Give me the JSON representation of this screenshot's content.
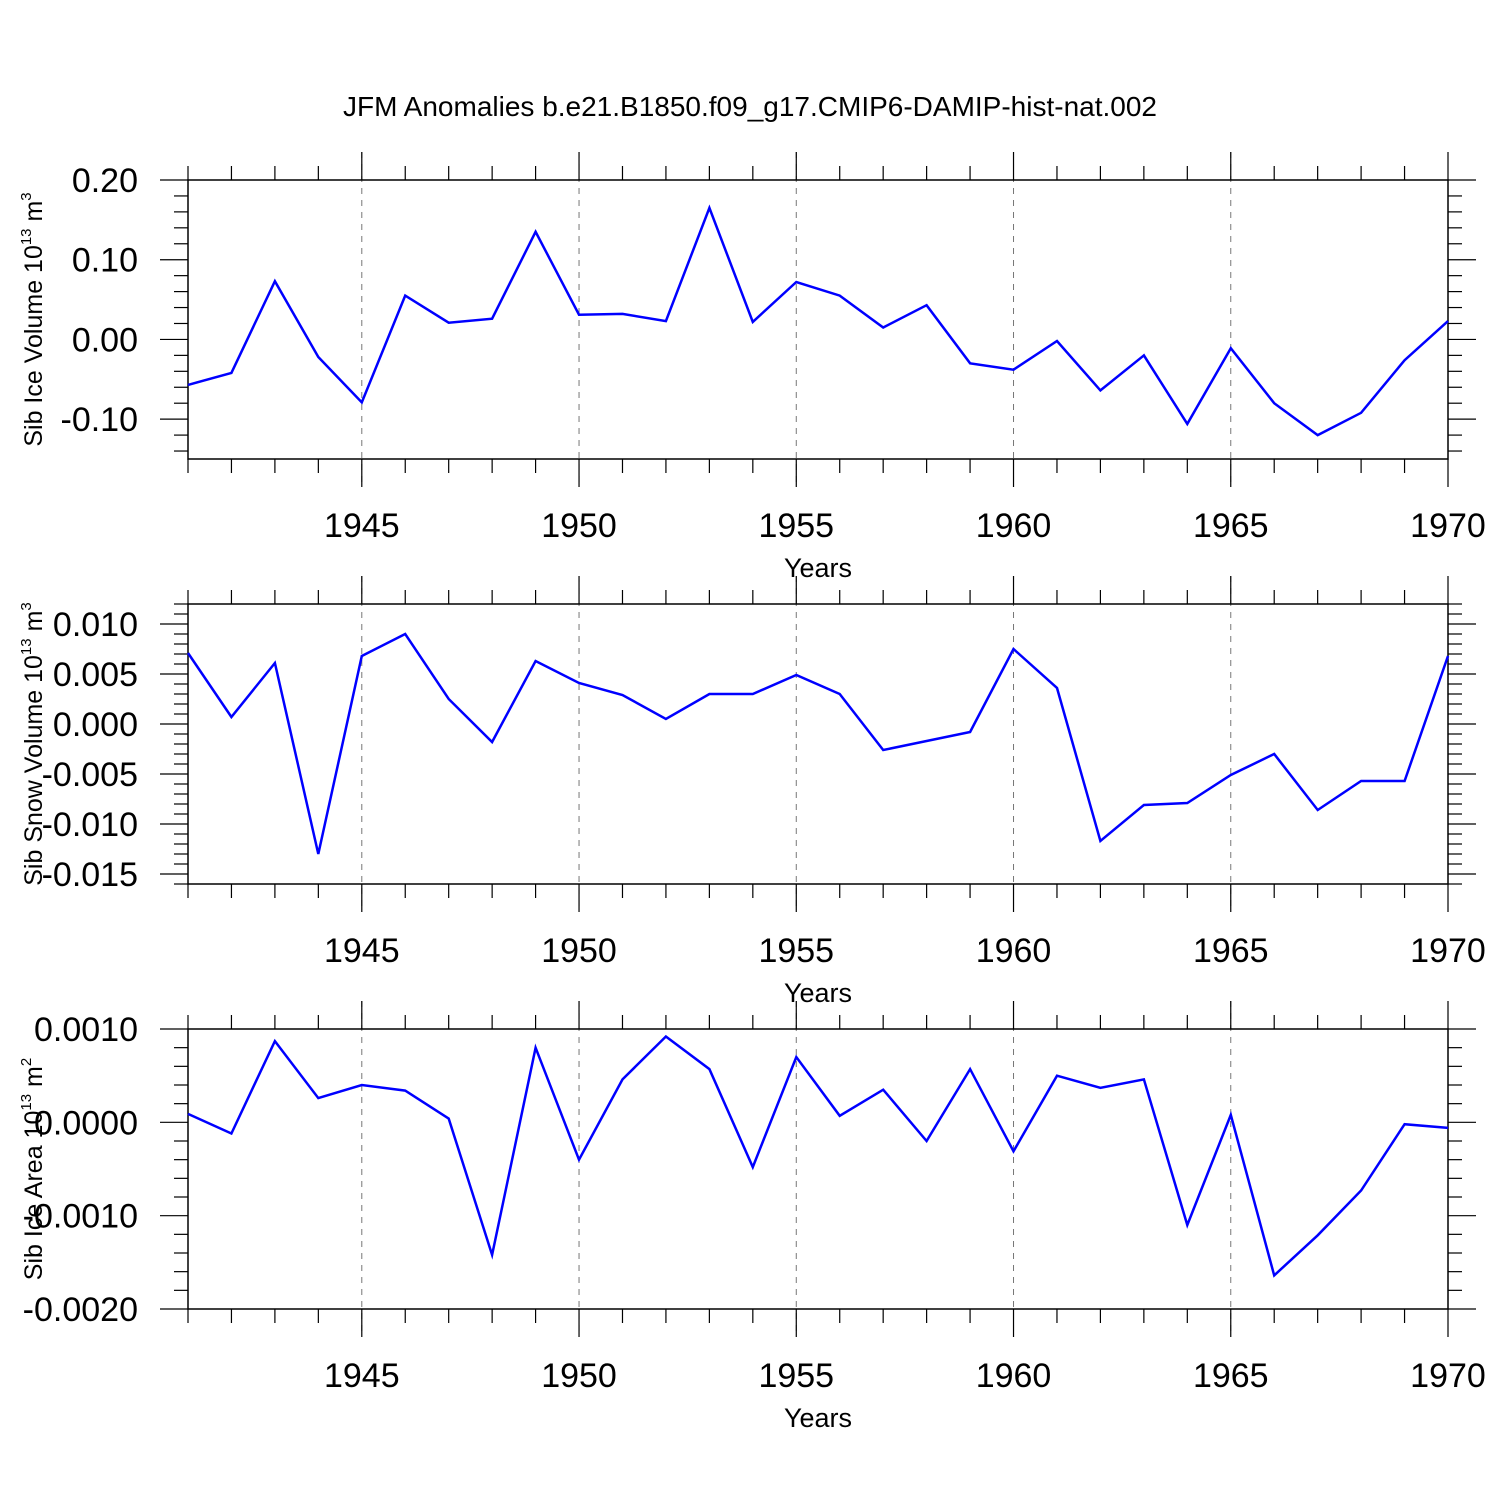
{
  "title": "JFM Anomalies b.e21.B1850.f09_g17.CMIP6-DAMIP-hist-nat.002",
  "colors": {
    "line": "#0000ff",
    "axis": "#000000",
    "grid": "#777777"
  },
  "chart_data": [
    {
      "type": "line",
      "ylabel_main": "Sib Ice Volume 10",
      "ylabel_exp": "13",
      "ylabel_unit": " m",
      "ylabel_unit_exp": "3",
      "xlabel": "Years",
      "xlim": [
        1941,
        1970
      ],
      "ylim": [
        -0.15,
        0.2
      ],
      "yticks": [
        -0.1,
        0.0,
        0.1,
        0.2
      ],
      "ytick_labels": [
        "-0.10",
        "0.00",
        "0.10",
        "0.20"
      ],
      "xticks": [
        1945,
        1950,
        1955,
        1960,
        1965,
        1970
      ],
      "xtick_labels": [
        "1945",
        "1950",
        "1955",
        "1960",
        "1965",
        "1970"
      ],
      "grid_x": [
        1945,
        1950,
        1955,
        1960,
        1965
      ],
      "x": [
        1941,
        1942,
        1943,
        1944,
        1945,
        1946,
        1947,
        1948,
        1949,
        1950,
        1951,
        1952,
        1953,
        1954,
        1955,
        1956,
        1957,
        1958,
        1959,
        1960,
        1961,
        1962,
        1963,
        1964,
        1965,
        1966,
        1967,
        1968,
        1969,
        1970
      ],
      "values": [
        -0.057,
        -0.042,
        0.073,
        -0.022,
        -0.079,
        0.055,
        0.021,
        0.026,
        0.135,
        0.031,
        0.032,
        0.023,
        0.165,
        0.022,
        0.072,
        0.055,
        0.015,
        0.043,
        -0.03,
        -0.038,
        -0.002,
        -0.064,
        -0.02,
        -0.106,
        -0.011,
        -0.08,
        -0.12,
        -0.092,
        -0.026,
        0.023
      ]
    },
    {
      "type": "line",
      "ylabel_main": "Sib Snow Volume 10",
      "ylabel_exp": "13",
      "ylabel_unit": " m",
      "ylabel_unit_exp": "3",
      "xlabel": "Years",
      "xlim": [
        1941,
        1970
      ],
      "ylim": [
        -0.016,
        0.012
      ],
      "yticks": [
        -0.015,
        -0.01,
        -0.005,
        0.0,
        0.005,
        0.01
      ],
      "ytick_labels": [
        "-0.015",
        "-0.010",
        "-0.005",
        "0.000",
        "0.005",
        "0.010"
      ],
      "xticks": [
        1945,
        1950,
        1955,
        1960,
        1965,
        1970
      ],
      "xtick_labels": [
        "1945",
        "1950",
        "1955",
        "1960",
        "1965",
        "1970"
      ],
      "grid_x": [
        1945,
        1950,
        1955,
        1960,
        1965
      ],
      "x": [
        1941,
        1942,
        1943,
        1944,
        1945,
        1946,
        1947,
        1948,
        1949,
        1950,
        1951,
        1952,
        1953,
        1954,
        1955,
        1956,
        1957,
        1958,
        1959,
        1960,
        1961,
        1962,
        1963,
        1964,
        1965,
        1966,
        1967,
        1968,
        1969,
        1970
      ],
      "values": [
        0.0071,
        0.0007,
        0.0061,
        -0.013,
        0.0068,
        0.009,
        0.0025,
        -0.0018,
        0.0063,
        0.0041,
        0.0029,
        0.0005,
        0.003,
        0.003,
        0.0049,
        0.003,
        -0.0026,
        -0.0017,
        -0.0008,
        0.0075,
        0.0036,
        -0.0117,
        -0.0081,
        -0.0079,
        -0.0051,
        -0.003,
        -0.0086,
        -0.0057,
        -0.0057,
        0.0068
      ]
    },
    {
      "type": "line",
      "ylabel_main": "Sib Ice Area 10",
      "ylabel_exp": "13",
      "ylabel_unit": " m",
      "ylabel_unit_exp": "2",
      "xlabel": "Years",
      "xlim": [
        1941,
        1970
      ],
      "ylim": [
        -0.002,
        0.001
      ],
      "yticks": [
        -0.002,
        -0.001,
        0.0,
        0.001
      ],
      "ytick_labels": [
        "-0.0020",
        "-0.0010",
        "0.0000",
        "0.0010"
      ],
      "xticks": [
        1945,
        1950,
        1955,
        1960,
        1965,
        1970
      ],
      "xtick_labels": [
        "1945",
        "1950",
        "1955",
        "1960",
        "1965",
        "1970"
      ],
      "grid_x": [
        1945,
        1950,
        1955,
        1960,
        1965
      ],
      "x": [
        1941,
        1942,
        1943,
        1944,
        1945,
        1946,
        1947,
        1948,
        1949,
        1950,
        1951,
        1952,
        1953,
        1954,
        1955,
        1956,
        1957,
        1958,
        1959,
        1960,
        1961,
        1962,
        1963,
        1964,
        1965,
        1966,
        1967,
        1968,
        1969,
        1970
      ],
      "values": [
        9e-05,
        -0.00012,
        0.00087,
        0.00026,
        0.0004,
        0.00034,
        4e-05,
        -0.00142,
        0.0008,
        -0.0004,
        0.00046,
        0.00092,
        0.00057,
        -0.00048,
        0.0007,
        7e-05,
        0.00035,
        -0.0002,
        0.00057,
        -0.00031,
        0.0005,
        0.00037,
        0.00046,
        -0.0011,
        8e-05,
        -0.00164,
        -0.00121,
        -0.00073,
        -2e-05,
        -6e-05
      ]
    }
  ]
}
